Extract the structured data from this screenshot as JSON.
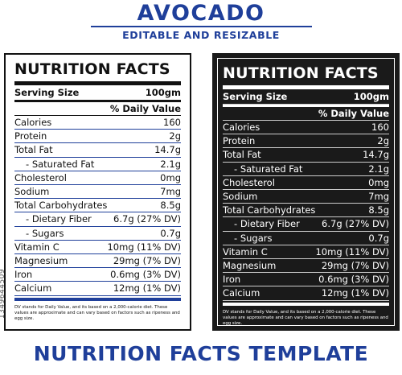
{
  "header": {
    "title": "AVOCADO",
    "subtitle": "EDITABLE AND RESIZABLE"
  },
  "footer": {
    "title": "NUTRITION FACTS TEMPLATE",
    "side_id": "1349644509"
  },
  "label": {
    "heading": "NUTRITION FACTS",
    "serving_label": "Serving Size",
    "serving_value": "100gm",
    "dv_header": "% Daily Value",
    "rows": [
      {
        "label": "Calories",
        "value": "160"
      },
      {
        "label": "Protein",
        "value": "2g"
      },
      {
        "label": "Total Fat",
        "value": "14.7g"
      },
      {
        "label": "Saturated Fat",
        "value": "2.1g"
      },
      {
        "label": "Cholesterol",
        "value": "0mg"
      },
      {
        "label": "Sodium",
        "value": "7mg"
      },
      {
        "label": "Total Carbohydrates",
        "value": "8.5g"
      },
      {
        "label": "Dietary Fiber",
        "value": "6.7g (27% DV)"
      },
      {
        "label": "Sugars",
        "value": "0.7g"
      },
      {
        "label": "Vitamin C",
        "value": "10mg (11% DV)"
      },
      {
        "label": "Magnesium",
        "value": "29mg (7% DV)"
      },
      {
        "label": "Iron",
        "value": "0.6mg (3% DV)"
      },
      {
        "label": "Calcium",
        "value": "12mg (1% DV)"
      }
    ],
    "footnote": "DV stands for Daily Value, and its based on a 2,000-calorie diet. These values are approximate and can vary based on factors such as ripeness and egg size."
  },
  "colors": {
    "brand_blue": "#1f3f9a",
    "dark_panel": "#1a1a1a"
  }
}
